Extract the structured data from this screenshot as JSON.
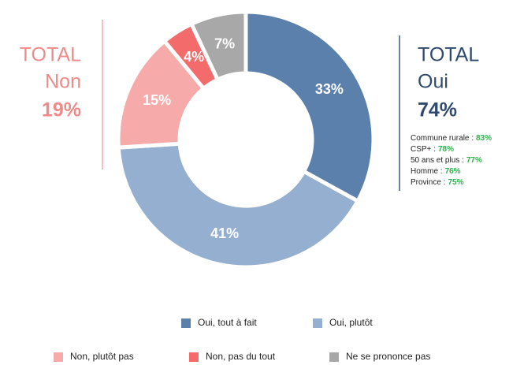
{
  "chart_data": {
    "type": "pie",
    "categories": [
      "Oui, tout à fait",
      "Oui, plutôt",
      "Non, plutôt pas",
      "Non, pas du tout",
      "Ne se prononce pas"
    ],
    "values": [
      33,
      41,
      15,
      4,
      7
    ],
    "value_labels": [
      "33%",
      "41%",
      "15%",
      "4%",
      "7%"
    ],
    "colors": [
      "#5b80ac",
      "#95afd0",
      "#f6aaa9",
      "#f36c6b",
      "#a8a8a8"
    ],
    "donut": true,
    "annotations": {
      "left": {
        "title": "TOTAL",
        "label": "Non",
        "value": "19%"
      },
      "right": {
        "title": "TOTAL",
        "label": "Oui",
        "value": "74%",
        "details": [
          {
            "label": "Commune rurale :",
            "value": "83%"
          },
          {
            "label": "CSP+ :",
            "value": "78%"
          },
          {
            "label": "50 ans et plus :",
            "value": "77%"
          },
          {
            "label": "Homme :",
            "value": "76%"
          },
          {
            "label": "Province :",
            "value": "75%"
          }
        ]
      }
    }
  }
}
